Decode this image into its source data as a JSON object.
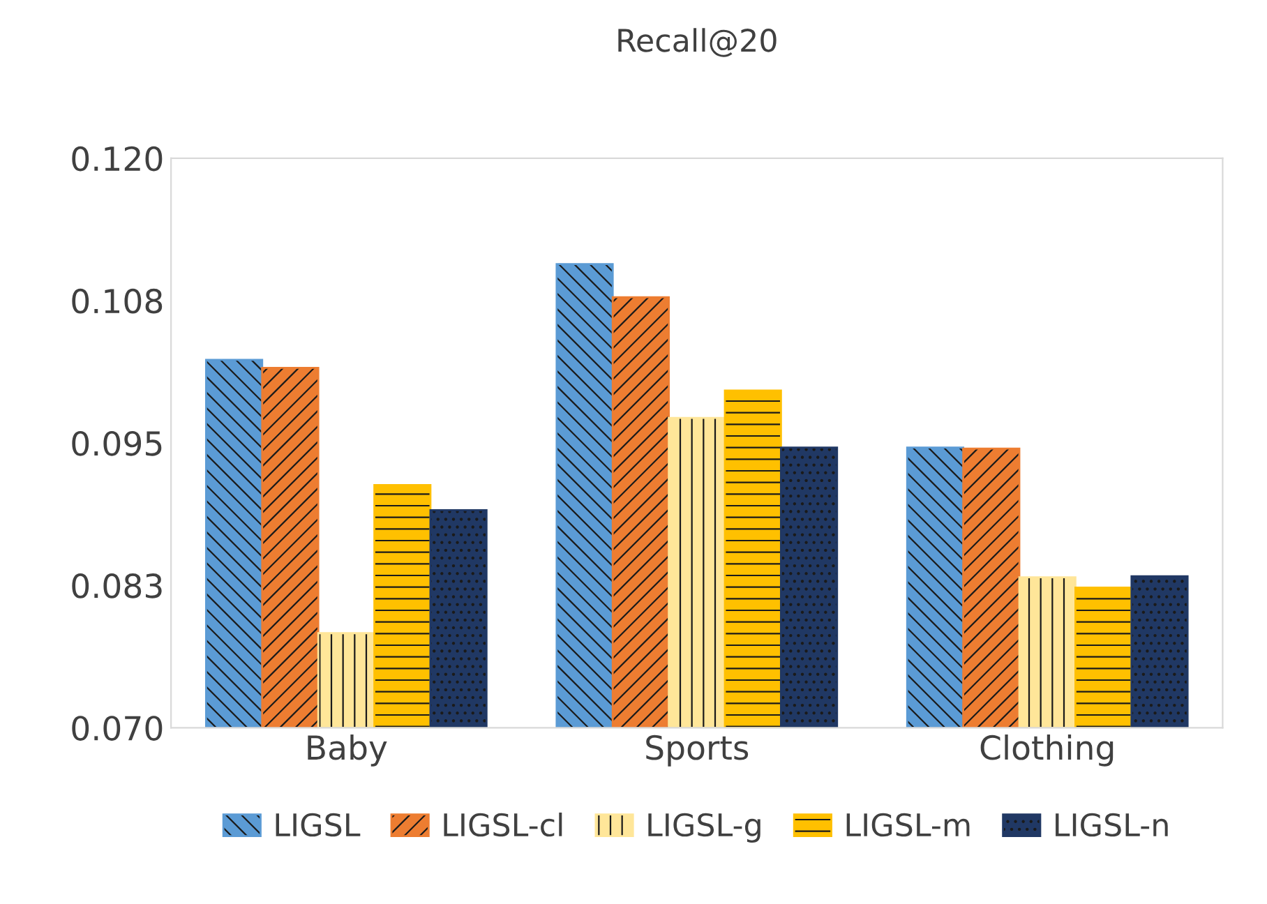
{
  "chart_data": {
    "type": "bar",
    "title": "Recall@20",
    "categories": [
      "Baby",
      "Sports",
      "Clothing"
    ],
    "series": [
      {
        "name": "LIGSL",
        "color": "#5b9bd5",
        "values": [
          0.1023,
          0.1107,
          0.0946
        ]
      },
      {
        "name": "LIGSL-cl",
        "color": "#ed7d31",
        "values": [
          0.1016,
          0.1078,
          0.0945
        ]
      },
      {
        "name": "LIGSL-g",
        "color": "#ffe699",
        "values": [
          0.0783,
          0.0972,
          0.0832
        ]
      },
      {
        "name": "LIGSL-m",
        "color": "#ffc000",
        "values": [
          0.0913,
          0.0996,
          0.0823
        ]
      },
      {
        "name": "LIGSL-n",
        "color": "#203864",
        "values": [
          0.0891,
          0.0946,
          0.0833
        ]
      }
    ],
    "ylim": [
      0.07,
      0.12
    ],
    "yticks": [
      {
        "value": 0.07,
        "label": "0.070"
      },
      {
        "value": 0.0825,
        "label": "0.083"
      },
      {
        "value": 0.095,
        "label": "0.095"
      },
      {
        "value": 0.1075,
        "label": "0.108"
      },
      {
        "value": 0.12,
        "label": "0.120"
      }
    ],
    "grid": false,
    "legend": "bottom"
  }
}
